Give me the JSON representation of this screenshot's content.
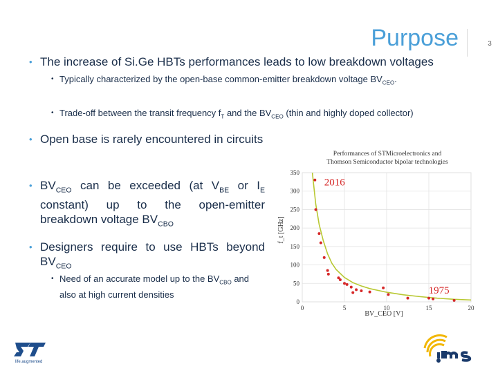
{
  "slide": {
    "title": "Purpose",
    "page_number": "3"
  },
  "bullets": {
    "b1": "The increase of Si.Ge HBTs performances leads to low breakdown voltages",
    "b1_sub1_pre": "Typically characterized by the open-base common-emitter breakdown voltage BV",
    "b1_sub1_subscript": "CEO",
    "b1_sub1_post": ".",
    "b1_sub2_pre": "Trade-off between the transit frequency f",
    "b1_sub2_subscript_t": "T",
    "b1_sub2_mid": " and the BV",
    "b1_sub2_subscript_ceo": "CEO",
    "b1_sub2_post": " (thin and highly doped collector)",
    "b2": "Open base is rarely encountered in circuits",
    "b3_pre": "BV",
    "b3_sub_ceo": "CEO",
    "b3_mid1": " can be exceeded (at V",
    "b3_sub_be": "BE",
    "b3_mid2": " or I",
    "b3_sub_e": "E",
    "b3_post": " constant) up to the open-emitter breakdown voltage BV",
    "b3_sub_cbo": "CBO",
    "b4_pre": "Designers require to use HBTs beyond BV",
    "b4_sub": "CEO",
    "b4_sub1_pre": "Need of an accurate model up to the BV",
    "b4_sub1_subscript": "CBO",
    "b4_sub1_post": " and also at high current densities"
  },
  "chart_data": {
    "type": "scatter",
    "title": "Performances of STMicroelectronics and Thomson Semiconductor bipolar technologies",
    "ylabel": "f_t [GHz]",
    "xlabel": "BV_CEO [V]",
    "xlim": [
      0,
      20
    ],
    "ylim": [
      0,
      350
    ],
    "xticks": [
      0,
      5,
      10,
      15,
      20
    ],
    "yticks": [
      0,
      50,
      100,
      150,
      200,
      250,
      300,
      350
    ],
    "grid": true,
    "annotations": [
      "2016",
      "1975"
    ],
    "colors": {
      "points": "#d62828",
      "fit": "#b8c832",
      "annotation": "#d62828"
    },
    "points": [
      {
        "x": 1.5,
        "y": 330
      },
      {
        "x": 1.6,
        "y": 250
      },
      {
        "x": 2.0,
        "y": 185
      },
      {
        "x": 2.2,
        "y": 160
      },
      {
        "x": 2.6,
        "y": 120
      },
      {
        "x": 3.0,
        "y": 85
      },
      {
        "x": 3.1,
        "y": 75
      },
      {
        "x": 4.3,
        "y": 65
      },
      {
        "x": 4.5,
        "y": 60
      },
      {
        "x": 5.0,
        "y": 50
      },
      {
        "x": 5.3,
        "y": 47
      },
      {
        "x": 5.8,
        "y": 40
      },
      {
        "x": 6.4,
        "y": 33
      },
      {
        "x": 6.0,
        "y": 25
      },
      {
        "x": 7.0,
        "y": 30
      },
      {
        "x": 8.0,
        "y": 27
      },
      {
        "x": 9.6,
        "y": 38
      },
      {
        "x": 10.2,
        "y": 20
      },
      {
        "x": 12.5,
        "y": 10
      },
      {
        "x": 15.0,
        "y": 10
      },
      {
        "x": 15.5,
        "y": 8
      },
      {
        "x": 18.0,
        "y": 4
      }
    ],
    "fit": {
      "x": [
        1.2,
        1.6,
        2,
        2.5,
        3,
        3.5,
        4,
        5,
        6,
        7,
        8,
        10,
        12,
        14,
        16,
        18,
        20
      ],
      "y": [
        350,
        265,
        210,
        165,
        130,
        105,
        88,
        66,
        52,
        43,
        36,
        26,
        19,
        14,
        10,
        7,
        5
      ]
    }
  }
}
